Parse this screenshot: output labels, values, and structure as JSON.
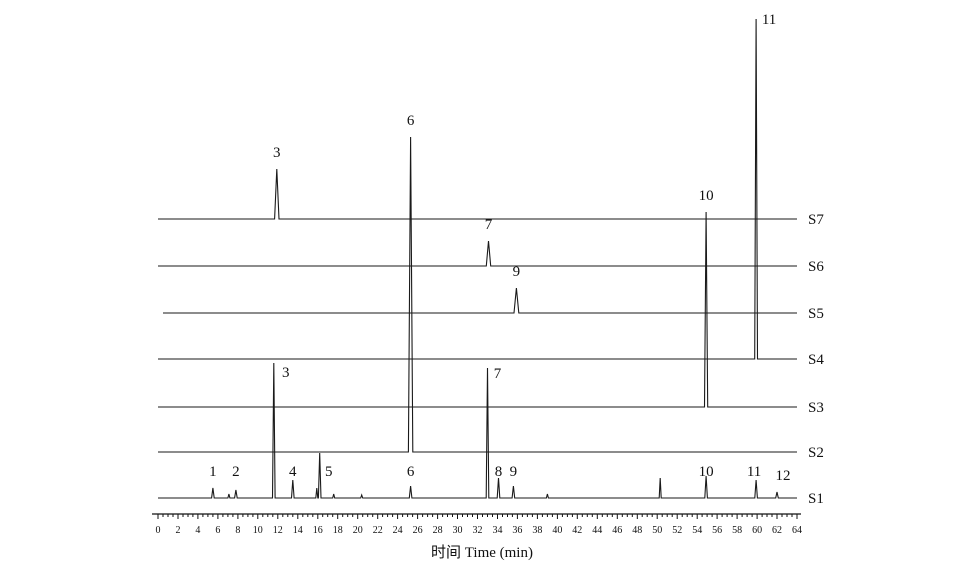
{
  "chart_data": {
    "type": "line",
    "xlabel": "时间 Time (min)",
    "xlim": [
      0,
      64
    ],
    "xticks": [
      0,
      2,
      4,
      6,
      8,
      10,
      12,
      14,
      16,
      18,
      20,
      22,
      24,
      26,
      28,
      30,
      32,
      34,
      36,
      38,
      40,
      42,
      44,
      46,
      48,
      50,
      52,
      54,
      56,
      58,
      60,
      62,
      64
    ],
    "grid": false,
    "series": [
      {
        "name": "S7",
        "peaks": [
          {
            "label": "3",
            "x": 11.9,
            "height": 50
          }
        ]
      },
      {
        "name": "S6",
        "peaks": [
          {
            "label": "7",
            "x": 33.1,
            "height": 25
          }
        ]
      },
      {
        "name": "S5",
        "peaks": [
          {
            "label": "9",
            "x": 35.9,
            "height": 25
          }
        ]
      },
      {
        "name": "S4",
        "peaks": [
          {
            "label": "11",
            "x": 59.9,
            "height": 340
          }
        ]
      },
      {
        "name": "S3",
        "peaks": [
          {
            "label": "10",
            "x": 54.9,
            "height": 195
          }
        ]
      },
      {
        "name": "S2",
        "peaks": [
          {
            "label": "6",
            "x": 25.3,
            "height": 315
          }
        ]
      },
      {
        "name": "S1",
        "peaks": [
          {
            "label": "1",
            "x": 5.5,
            "height": 10
          },
          {
            "label": "2",
            "x": 7.8,
            "height": 8
          },
          {
            "label": "3",
            "x": 11.6,
            "height": 135
          },
          {
            "label": "4",
            "x": 13.5,
            "height": 18
          },
          {
            "label": "5",
            "x": 16.2,
            "height": 45
          },
          {
            "label": "6",
            "x": 25.3,
            "height": 12
          },
          {
            "label": "7",
            "x": 33.0,
            "height": 130
          },
          {
            "label": "8",
            "x": 34.1,
            "height": 20
          },
          {
            "label": "9",
            "x": 35.6,
            "height": 12
          },
          {
            "label": "10",
            "x": 54.9,
            "height": 22
          },
          {
            "label": "11",
            "x": 59.9,
            "height": 18
          },
          {
            "label": "12",
            "x": 62.0,
            "height": 6
          }
        ],
        "minor_peaks": [
          {
            "x": 15.9,
            "height": 10
          },
          {
            "x": 50.3,
            "height": 20
          },
          {
            "x": 7.1,
            "height": 4
          },
          {
            "x": 17.6,
            "height": 4
          },
          {
            "x": 20.4,
            "height": 3
          },
          {
            "x": 39.0,
            "height": 4
          }
        ]
      }
    ]
  }
}
